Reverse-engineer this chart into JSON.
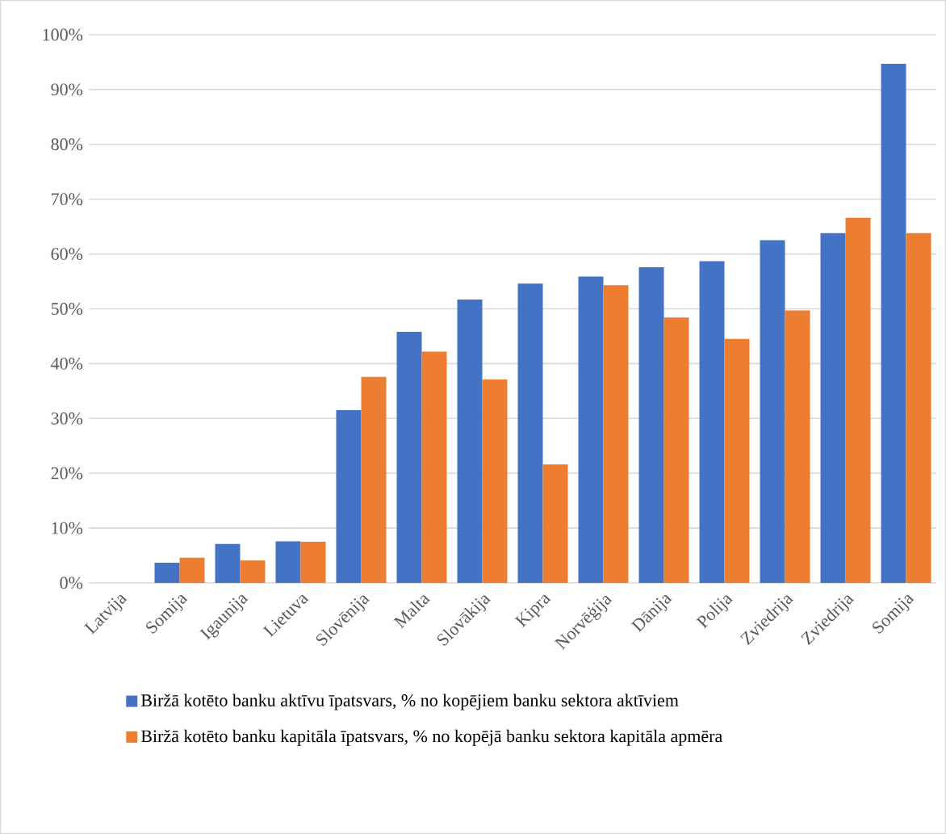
{
  "chart_data": {
    "type": "bar",
    "categories": [
      "Latvija",
      "Somija",
      "Igaunija",
      "Lietuva",
      "Slovēnija",
      "Malta",
      "Slovākija",
      "Kipra",
      "Norvēģija",
      "Dānija",
      "Polija",
      "Zviedrija",
      "Zviedrija",
      "Somija"
    ],
    "series": [
      {
        "name": "Biržā kotēto banku aktīvu īpatsvars, % no kopējiem banku sektora aktīviem",
        "color": "#4472c4",
        "values": [
          0,
          3.7,
          7.1,
          7.6,
          31.5,
          45.8,
          51.7,
          54.6,
          55.9,
          57.6,
          58.7,
          62.5,
          63.8,
          94.7
        ]
      },
      {
        "name": "Biržā kotēto banku kapitāla īpatsvars, % no kopējā banku sektora kapitāla apmēra",
        "color": "#ed7d31",
        "values": [
          0,
          4.6,
          4.1,
          7.5,
          37.6,
          42.2,
          37.1,
          21.6,
          54.3,
          48.4,
          44.5,
          49.7,
          66.6,
          63.8
        ]
      }
    ],
    "ylim": [
      0,
      100
    ],
    "yticks": [
      {
        "value": 0,
        "label": "0%"
      },
      {
        "value": 10,
        "label": "10%"
      },
      {
        "value": 20,
        "label": "20%"
      },
      {
        "value": 30,
        "label": "30%"
      },
      {
        "value": 40,
        "label": "40%"
      },
      {
        "value": 50,
        "label": "50%"
      },
      {
        "value": 60,
        "label": "60%"
      },
      {
        "value": 70,
        "label": "70%"
      },
      {
        "value": 80,
        "label": "80%"
      },
      {
        "value": 90,
        "label": "90%"
      },
      {
        "value": 100,
        "label": "100%"
      }
    ],
    "grid": "y",
    "legend": "bottom"
  }
}
